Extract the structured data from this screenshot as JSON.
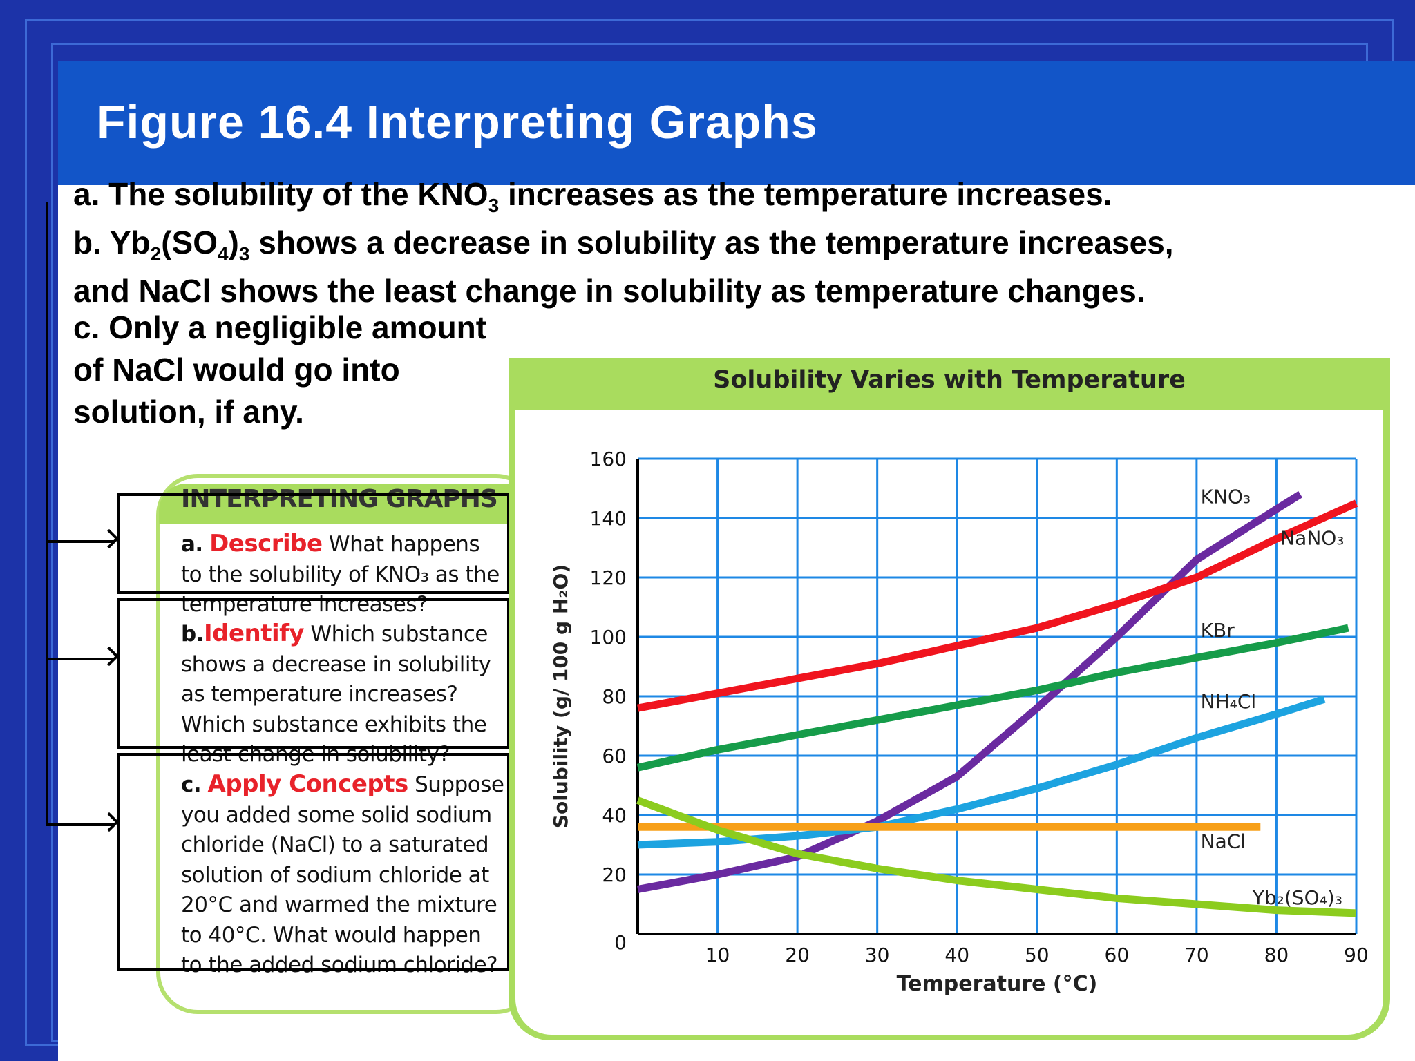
{
  "header": {
    "title": "Figure 16.4 Interpreting Graphs"
  },
  "bullets": {
    "a": {
      "prefix": "a. The solubility of the KNO",
      "sub": "3",
      "suffix": " increases as the temperature increases."
    },
    "b": {
      "prefix": "b. Yb",
      "sub1": "2",
      "mid1": "(SO",
      "sub2": "4",
      "mid2": ")",
      "sub3": "3",
      "suffix": " shows a decrease in solubility as the temperature increases,"
    },
    "b2": "and NaCl shows the least change in solubility as temperature changes.",
    "c": "c. Only a negligible amount of NaCl would go into solution, if any."
  },
  "interpreting": {
    "title": "INTERPRETING GRAPHS",
    "a_label": "a.",
    "a_verb": "Describe",
    "a_text": "What happens to the solubility of KNO₃ as the temperature increases?",
    "b_label": "b.",
    "b_verb": "Identify",
    "b_text": "Which substance shows a decrease in solubility as temperature increases? Which substance exhibits the least change in solubility?",
    "c_label": "c.",
    "c_verb": "Apply Concepts",
    "c_text": "Suppose you added some solid sodium chloride (NaCl) to a saturated solution of sodium chloride at 20°C and warmed the mixture to 40°C. What would happen to the added sodium chloride?"
  },
  "chart_panel": {
    "title": "Solubility Varies with Temperature"
  },
  "chart_data": {
    "type": "line",
    "title": "Solubility Varies with Temperature",
    "xlabel": "Temperature (°C)",
    "ylabel": "Solubility (g/ 100 g H₂O)",
    "xlim": [
      0,
      90
    ],
    "ylim": [
      0,
      160
    ],
    "xticks": [
      10,
      20,
      30,
      40,
      50,
      60,
      70,
      80,
      90
    ],
    "yticks": [
      0,
      20,
      40,
      60,
      80,
      100,
      120,
      140,
      160
    ],
    "grid": true,
    "series": [
      {
        "name": "KNO₃",
        "color": "#6a2aa0",
        "x": [
          0,
          10,
          20,
          30,
          40,
          50,
          60,
          70,
          80,
          83
        ],
        "y": [
          15,
          20,
          26,
          38,
          53,
          76,
          100,
          126,
          143,
          148
        ]
      },
      {
        "name": "NaNO₃",
        "color": "#f0141e",
        "x": [
          0,
          10,
          20,
          30,
          40,
          50,
          60,
          70,
          80,
          90
        ],
        "y": [
          76,
          81,
          86,
          91,
          97,
          103,
          111,
          120,
          133,
          145
        ]
      },
      {
        "name": "KBr",
        "color": "#169c4a",
        "x": [
          0,
          10,
          20,
          30,
          40,
          50,
          60,
          70,
          80,
          89
        ],
        "y": [
          56,
          62,
          67,
          72,
          77,
          82,
          88,
          93,
          98,
          103
        ]
      },
      {
        "name": "NH₄Cl",
        "color": "#1da3e0",
        "x": [
          0,
          10,
          20,
          30,
          40,
          50,
          60,
          70,
          80,
          86
        ],
        "y": [
          30,
          31,
          33,
          36,
          42,
          49,
          57,
          66,
          74,
          79
        ]
      },
      {
        "name": "NaCl",
        "color": "#f7a01a",
        "x": [
          0,
          10,
          20,
          30,
          40,
          50,
          60,
          70,
          78
        ],
        "y": [
          36,
          36,
          36,
          36,
          36,
          36,
          36,
          36,
          36
        ]
      },
      {
        "name": "Yb₂(SO₄)₃",
        "color": "#8ccc1e",
        "x": [
          0,
          10,
          20,
          30,
          40,
          50,
          60,
          70,
          80,
          90
        ],
        "y": [
          45,
          35,
          27,
          22,
          18,
          15,
          12,
          10,
          8,
          7
        ]
      }
    ],
    "labels": [
      {
        "text": "KNO₃",
        "x": 70.5,
        "y": 145
      },
      {
        "text": "NaNO₃",
        "x": 80.5,
        "y": 131
      },
      {
        "text": "KBr",
        "x": 70.5,
        "y": 100
      },
      {
        "text": "NH₄Cl",
        "x": 70.5,
        "y": 76
      },
      {
        "text": "NaCl",
        "x": 70.5,
        "y": 29
      },
      {
        "text": "Yb₂(SO₄)₃",
        "x": 77,
        "y": 10
      }
    ]
  }
}
